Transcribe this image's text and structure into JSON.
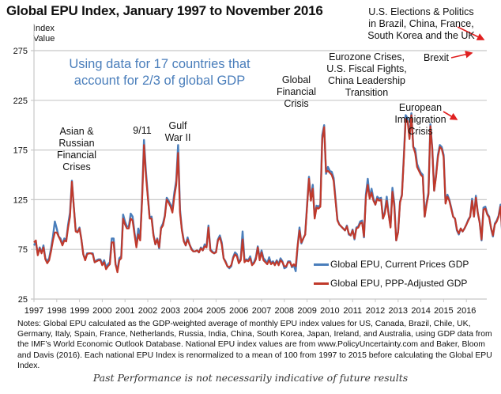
{
  "chart_data": {
    "type": "line",
    "title": "Global EPU Index, January 1997 to November 2016",
    "subtitle": [
      "Using data for 17 countries that",
      "account for 2/3 of global GDP"
    ],
    "ylabel": [
      "Index",
      "Value"
    ],
    "xlabel": "",
    "ylim": [
      25,
      285
    ],
    "yticks": [
      25,
      75,
      125,
      175,
      225,
      275
    ],
    "xticks": [
      "1997",
      "1998",
      "1999",
      "2000",
      "2001",
      "2002",
      "2003",
      "2004",
      "2005",
      "2006",
      "2007",
      "2008",
      "2009",
      "2010",
      "2011",
      "2012",
      "2013",
      "2014",
      "2015",
      "2016"
    ],
    "x_start": "1997-01",
    "x_end": "2016-11",
    "grid": "horizontal",
    "legend_position": "bottom-right",
    "series": [
      {
        "name": "Global EPU, Current Prices GDP",
        "color": "#4a7ebb",
        "values": [
          79,
          82,
          70,
          77,
          72,
          79,
          66,
          63,
          66,
          76,
          88,
          103,
          96,
          88,
          86,
          80,
          86,
          84,
          100,
          112,
          144,
          118,
          94,
          93,
          97,
          85,
          70,
          65,
          71,
          71,
          71,
          71,
          62,
          64,
          65,
          65,
          60,
          64,
          57,
          60,
          62,
          86,
          86,
          60,
          54,
          66,
          68,
          110,
          103,
          98,
          98,
          111,
          108,
          92,
          79,
          96,
          86,
          128,
          185,
          154,
          130,
          107,
          108,
          90,
          80,
          86,
          76,
          97,
          101,
          109,
          127,
          124,
          120,
          116,
          132,
          144,
          180,
          115,
          95,
          84,
          79,
          87,
          80,
          76,
          73,
          73,
          74,
          72,
          77,
          74,
          80,
          78,
          99,
          75,
          73,
          71,
          73,
          85,
          89,
          82,
          66,
          63,
          58,
          56,
          58,
          67,
          72,
          70,
          62,
          65,
          93,
          64,
          65,
          64,
          68,
          60,
          62,
          67,
          78,
          66,
          74,
          66,
          64,
          61,
          67,
          61,
          63,
          60,
          64,
          60,
          66,
          63,
          56,
          57,
          63,
          63,
          57,
          59,
          53,
          78,
          97,
          81,
          86,
          90,
          120,
          148,
          125,
          140,
          107,
          119,
          118,
          120,
          190,
          200,
          151,
          158,
          154,
          153,
          147,
          126,
          105,
          100,
          98,
          96,
          94,
          99,
          90,
          89,
          95,
          85,
          97,
          98,
          103,
          104,
          87,
          130,
          146,
          127,
          136,
          126,
          120,
          128,
          126,
          127,
          106,
          113,
          128,
          111,
          98,
          137,
          121,
          84,
          93,
          123,
          130,
          168,
          210,
          207,
          188,
          212,
          178,
          176,
          161,
          156,
          152,
          150,
          108,
          122,
          132,
          201,
          177,
          134,
          150,
          170,
          180,
          178,
          170,
          122,
          130,
          125,
          117,
          108,
          106,
          94,
          90,
          96,
          93,
          96,
          100,
          105,
          108,
          126,
          108,
          129,
          112,
          102,
          84,
          117,
          118,
          111,
          108,
          96,
          88,
          101,
          104,
          109,
          120,
          86,
          123,
          123,
          110,
          118,
          105,
          106,
          97,
          100,
          108,
          116,
          150,
          164,
          205,
          157,
          97,
          119,
          147,
          160,
          168,
          180,
          153,
          145,
          160,
          178,
          268,
          275,
          172,
          152,
          175,
          148,
          282
        ],
        "note": "approximate monthly values estimated from the plotted line"
      },
      {
        "name": "Global EPU, PPP-Adjusted GDP",
        "color": "#c0392b",
        "values": [
          82,
          84,
          69,
          76,
          71,
          77,
          65,
          61,
          64,
          73,
          84,
          92,
          92,
          88,
          84,
          79,
          84,
          83,
          97,
          108,
          143,
          118,
          93,
          92,
          96,
          85,
          70,
          64,
          70,
          71,
          71,
          70,
          62,
          63,
          64,
          64,
          59,
          62,
          55,
          58,
          60,
          82,
          82,
          60,
          52,
          64,
          66,
          106,
          100,
          96,
          96,
          106,
          104,
          90,
          77,
          90,
          84,
          124,
          180,
          150,
          128,
          106,
          106,
          89,
          80,
          85,
          77,
          96,
          99,
          108,
          125,
          122,
          118,
          112,
          128,
          140,
          172,
          112,
          94,
          83,
          79,
          85,
          80,
          75,
          73,
          73,
          74,
          72,
          76,
          74,
          78,
          77,
          97,
          74,
          72,
          71,
          72,
          84,
          87,
          80,
          66,
          62,
          58,
          57,
          59,
          66,
          70,
          68,
          61,
          64,
          85,
          62,
          64,
          63,
          66,
          59,
          61,
          65,
          77,
          64,
          72,
          64,
          62,
          60,
          64,
          60,
          62,
          59,
          63,
          59,
          64,
          62,
          58,
          58,
          62,
          62,
          58,
          60,
          58,
          78,
          94,
          82,
          86,
          90,
          118,
          146,
          124,
          136,
          106,
          117,
          116,
          118,
          186,
          198,
          153,
          154,
          152,
          150,
          144,
          124,
          104,
          100,
          98,
          96,
          94,
          98,
          91,
          89,
          94,
          86,
          96,
          97,
          101,
          102,
          88,
          127,
          140,
          126,
          132,
          124,
          120,
          126,
          124,
          125,
          106,
          111,
          124,
          110,
          97,
          133,
          118,
          84,
          92,
          122,
          129,
          166,
          206,
          204,
          186,
          210,
          178,
          172,
          158,
          154,
          150,
          148,
          108,
          120,
          130,
          199,
          176,
          134,
          148,
          168,
          178,
          176,
          168,
          121,
          128,
          124,
          116,
          108,
          106,
          95,
          91,
          96,
          93,
          96,
          100,
          104,
          108,
          124,
          108,
          127,
          112,
          102,
          85,
          115,
          116,
          110,
          107,
          97,
          89,
          100,
          103,
          108,
          118,
          88,
          122,
          122,
          111,
          117,
          106,
          106,
          98,
          100,
          108,
          116,
          148,
          162,
          203,
          156,
          98,
          118,
          146,
          158,
          166,
          178,
          152,
          146,
          158,
          176,
          265,
          272,
          170,
          158,
          172,
          150,
          280
        ]
      }
    ],
    "annotations": [
      {
        "text": [
          "Asian &",
          "Russian",
          "Financial",
          "Crises"
        ]
      },
      {
        "text": [
          "9/11"
        ]
      },
      {
        "text": [
          "Gulf",
          "War II"
        ]
      },
      {
        "text": [
          "Global",
          "Financial",
          "Crisis"
        ]
      },
      {
        "text": [
          "Eurozone Crises,",
          "U.S. Fiscal Fights,",
          "China Leadership",
          "Transition"
        ]
      },
      {
        "text": [
          "European",
          "Immigration",
          "Crisis"
        ]
      },
      {
        "text": [
          "Brexit"
        ]
      },
      {
        "text": [
          "U.S. Elections & Politics",
          "in Brazil, China, France,",
          "South Korea and the UK"
        ]
      }
    ],
    "arrow_color": "#e02020"
  },
  "notes": "Notes: Global EPU calculated as the GDP-weighted average of monthly EPU index values for US, Canada, Brazil, Chile, UK, Germany, Italy, Spain, France, Netherlands, Russia, India, China, South Korea, Japan, Ireland, and Australia, using GDP data from the IMF’s World Economic Outlook Database. National EPU index values are from www.PolicyUncertainty.com and Baker, Bloom and Davis (2016). Each national EPU Index is renormalized to a mean of 100 from 1997 to 2015 before calculating the Global EPU Index.",
  "disclaimer": "Past Performance is not necessarily indicative of future results"
}
